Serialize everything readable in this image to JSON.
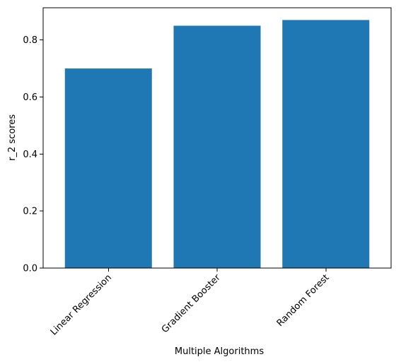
{
  "chart_data": {
    "type": "bar",
    "categories": [
      "Linear Regression",
      "Gradient Booster",
      "Random Forest"
    ],
    "values": [
      0.7,
      0.85,
      0.87
    ],
    "title": "",
    "xlabel": "Multiple Algorithms",
    "ylabel": "r_2 scores",
    "ylim": [
      0,
      0.913
    ],
    "yticks": [
      0.0,
      0.2,
      0.4,
      0.6,
      0.8
    ],
    "ytick_labels": [
      "0.0",
      "0.2",
      "0.4",
      "0.6",
      "0.8"
    ],
    "xtick_rotation_deg": 45,
    "bar_color": "#1f77b4",
    "grid": false,
    "legend": "none"
  }
}
